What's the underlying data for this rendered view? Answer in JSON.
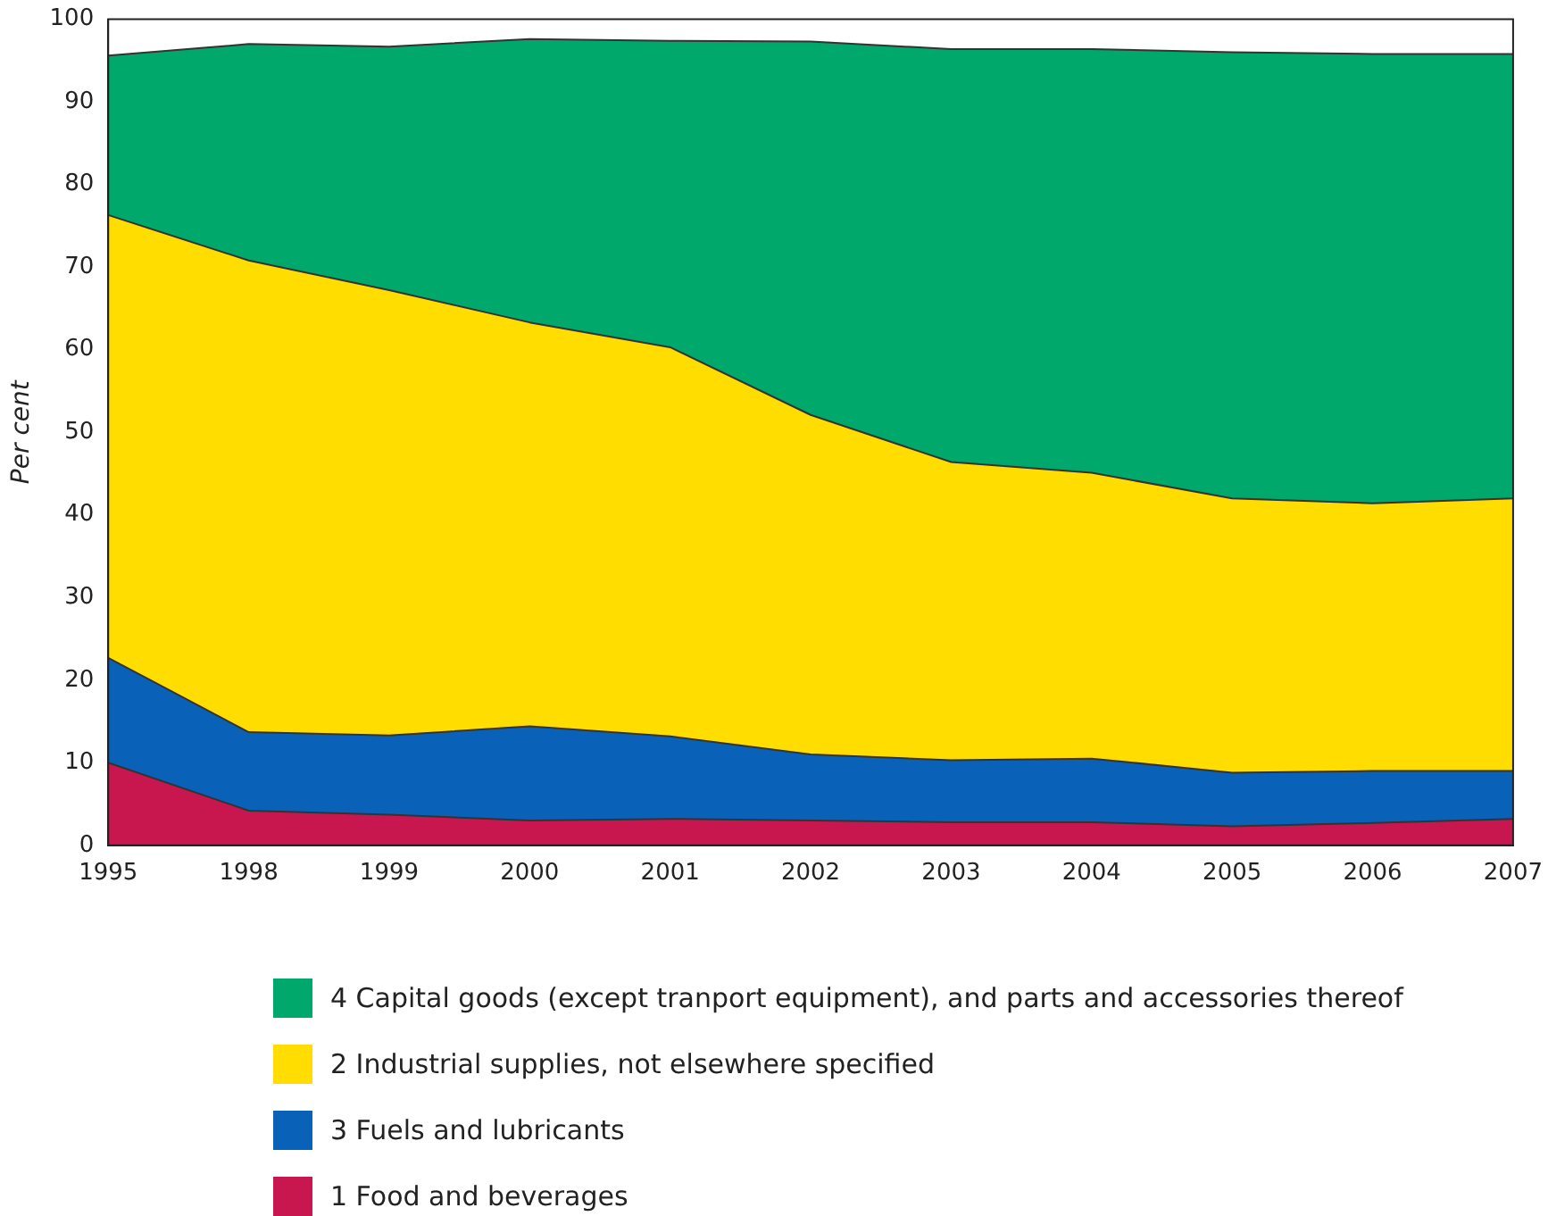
{
  "chart_data": {
    "type": "area",
    "stacked": true,
    "ylabel": "Per cent",
    "categories": [
      "1995",
      "1998",
      "1999",
      "2000",
      "2001",
      "2002",
      "2003",
      "2004",
      "2005",
      "2006",
      "2007"
    ],
    "series": [
      {
        "name": "1 Food and beverages",
        "color": "#c8174f",
        "values": [
          10,
          4.2,
          3.7,
          3,
          3.2,
          3,
          2.8,
          2.8,
          2.3,
          2.7,
          3.2
        ]
      },
      {
        "name": "3 Fuels and lubricants",
        "color": "#0a62b8",
        "values": [
          12.7,
          9.5,
          9.6,
          11.4,
          10,
          8,
          7.5,
          7.7,
          6.5,
          6.3,
          5.8
        ]
      },
      {
        "name": "2 Industrial supplies, not elsewhere specified",
        "color": "#ffdd00",
        "values": [
          53.6,
          57.1,
          53.9,
          48.9,
          47.1,
          41.1,
          36.1,
          34.6,
          33.2,
          32.4,
          33
        ]
      },
      {
        "name": "4 Capital goods (except tranport equipment), and parts and accessories thereof",
        "color": "#00a86b",
        "values": [
          19.3,
          26.2,
          29.5,
          34.3,
          37.1,
          45.2,
          50,
          51.3,
          54,
          54.4,
          53.8
        ]
      }
    ],
    "ylim": [
      0,
      100
    ],
    "yticks": [
      0,
      10,
      20,
      30,
      40,
      50,
      60,
      70,
      80,
      90,
      100
    ],
    "grid": false,
    "legend": "bottom",
    "marker": "none",
    "line_style": "solid"
  }
}
